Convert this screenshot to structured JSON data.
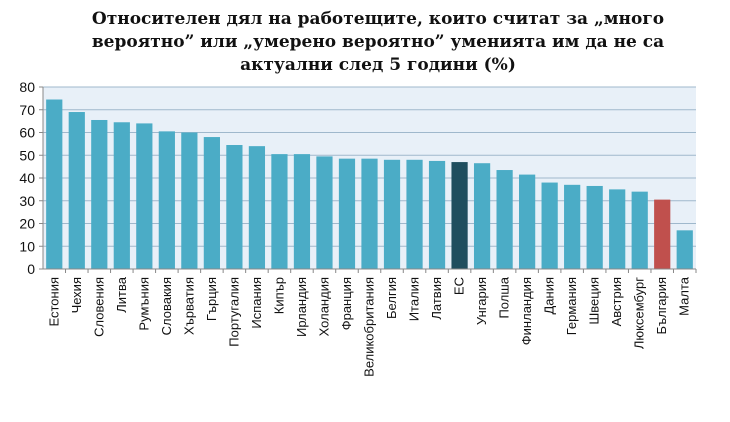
{
  "chart_data": {
    "type": "bar",
    "title": "Относителен дял на работещите, които считат за „много вероятно” или „умерено вероятно” уменията им да не са актуални след 5 години (%)",
    "xlabel": "",
    "ylabel": "",
    "ylim": [
      0,
      80
    ],
    "yticks": [
      0,
      10,
      20,
      30,
      40,
      50,
      60,
      70,
      80
    ],
    "grid": true,
    "legend": "none",
    "categories": [
      "Естония",
      "Чехия",
      "Словения",
      "Литва",
      "Румъния",
      "Словакия",
      "Хърватия",
      "Гърция",
      "Португалия",
      "Испания",
      "Кипър",
      "Ирландия",
      "Холандия",
      "Франция",
      "Великобритания",
      "Белгия",
      "Италия",
      "Латвия",
      "ЕС",
      "Унгария",
      "Полша",
      "Финландия",
      "Дания",
      "Германия",
      "Швеция",
      "Австрия",
      "Люксембург",
      "България",
      "Малта"
    ],
    "values": [
      74.5,
      69,
      65.5,
      64.5,
      64,
      60.5,
      60,
      58,
      54.5,
      54,
      50.5,
      50.5,
      49.5,
      48.5,
      48.5,
      48,
      48,
      47.5,
      47,
      46.5,
      43.5,
      41.5,
      38,
      37,
      36.5,
      35,
      34,
      30.5,
      17
    ],
    "colors": {
      "default": "#4bacc6",
      "highlight_eu": "#1f4e5e",
      "highlight_bg": "#c0504d",
      "plot_background": "#e8f0f8",
      "gridline": "#9fb8cc"
    }
  }
}
